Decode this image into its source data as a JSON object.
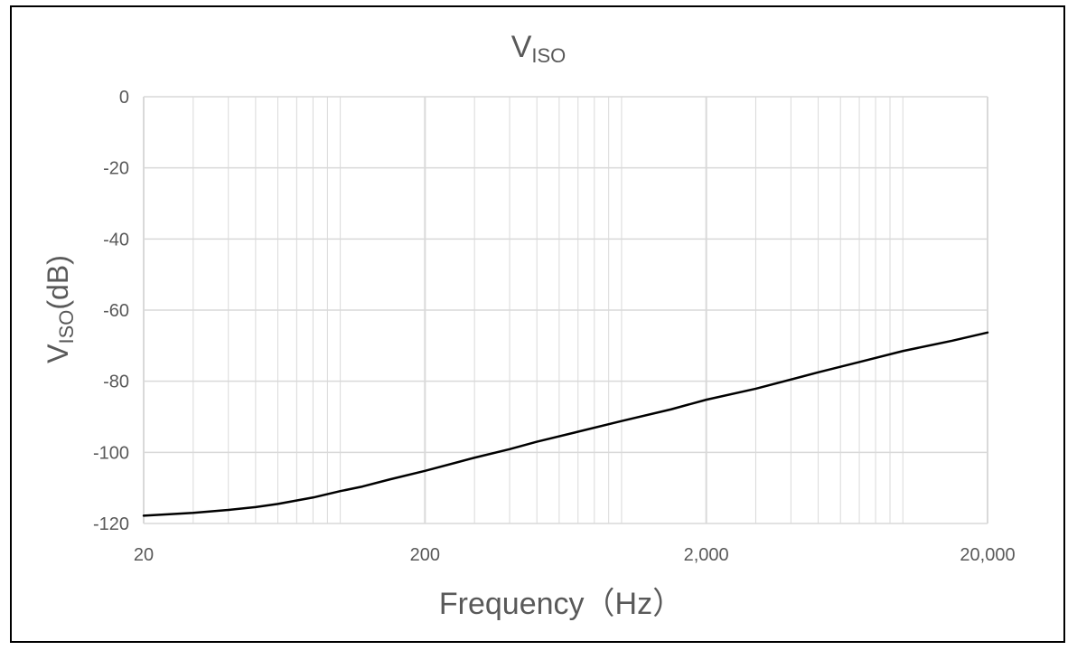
{
  "chart_data": {
    "type": "line",
    "title_main": "V",
    "title_sub": "ISO",
    "xlabel": "Frequency（Hz）",
    "ylabel_main": "V",
    "ylabel_sub": "ISO",
    "ylabel_tail": "(dB)",
    "x_scale": "log",
    "xlim": [
      20,
      20000
    ],
    "ylim": [
      -120,
      0
    ],
    "x_ticks": [
      {
        "value": 20,
        "label": "20"
      },
      {
        "value": 200,
        "label": "200"
      },
      {
        "value": 2000,
        "label": "2,000"
      },
      {
        "value": 20000,
        "label": "20,000"
      }
    ],
    "y_ticks": [
      {
        "value": 0,
        "label": "0"
      },
      {
        "value": -20,
        "label": "-20"
      },
      {
        "value": -40,
        "label": "-40"
      },
      {
        "value": -60,
        "label": "-60"
      },
      {
        "value": -80,
        "label": "-80"
      },
      {
        "value": -100,
        "label": "-100"
      },
      {
        "value": -120,
        "label": "-120"
      }
    ],
    "grid": true,
    "legend": "none",
    "series": [
      {
        "color": "#000000",
        "x": [
          20,
          30,
          40,
          50,
          60,
          80,
          100,
          120,
          150,
          200,
          300,
          400,
          500,
          700,
          1000,
          1500,
          2000,
          3000,
          5000,
          7000,
          10000,
          15000,
          20000
        ],
        "y": [
          -117.8,
          -117.0,
          -116.2,
          -115.4,
          -114.5,
          -112.7,
          -110.9,
          -109.6,
          -107.6,
          -105.2,
          -101.5,
          -99.1,
          -97.0,
          -94.2,
          -91.2,
          -87.9,
          -85.2,
          -82.1,
          -77.5,
          -74.6,
          -71.5,
          -68.6,
          -66.3
        ]
      }
    ],
    "colors": {
      "grid": "#d9d9d9",
      "axis_text": "#595959",
      "title_text": "#595959",
      "line": "#000000"
    }
  }
}
